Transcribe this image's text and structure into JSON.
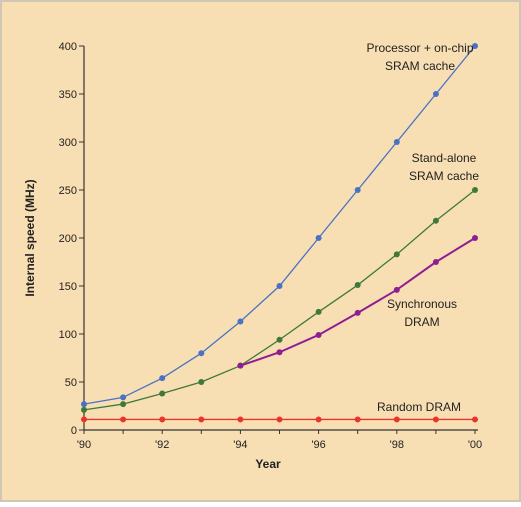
{
  "colors": {
    "background": "#f8dfb3",
    "border": "#cfc6b6",
    "axis": "#333333",
    "text": "#222222"
  },
  "chart_data": {
    "type": "line",
    "xlabel": "Year",
    "ylabel": "Internal speed (MHz)",
    "x": [
      1990,
      1991,
      1992,
      1993,
      1994,
      1995,
      1996,
      1997,
      1998,
      1999,
      2000
    ],
    "xlim": [
      1990,
      2000
    ],
    "ylim": [
      0,
      400
    ],
    "x_ticks": [
      {
        "value": 1990,
        "label": "'90"
      },
      {
        "value": 1992,
        "label": "'92"
      },
      {
        "value": 1994,
        "label": "'94"
      },
      {
        "value": 1996,
        "label": "'96"
      },
      {
        "value": 1998,
        "label": "'98"
      },
      {
        "value": 2000,
        "label": "'00"
      }
    ],
    "y_ticks": [
      {
        "value": 0,
        "label": "0"
      },
      {
        "value": 50,
        "label": "50"
      },
      {
        "value": 100,
        "label": "100"
      },
      {
        "value": 150,
        "label": "150"
      },
      {
        "value": 200,
        "label": "200"
      },
      {
        "value": 250,
        "label": "250"
      },
      {
        "value": 300,
        "label": "300"
      },
      {
        "value": 350,
        "label": "350"
      },
      {
        "value": 400,
        "label": "400"
      }
    ],
    "grid": false,
    "series": [
      {
        "key": "processor",
        "label_lines": [
          "Processor + on-chip",
          "SRAM cache"
        ],
        "color": "#4a72c4",
        "x": [
          1990,
          1991,
          1992,
          1993,
          1994,
          1995,
          1996,
          1997,
          1998,
          1999,
          2000
        ],
        "values": [
          27,
          34,
          54,
          80,
          113,
          150,
          200,
          250,
          300,
          350,
          400
        ]
      },
      {
        "key": "standalone_sram",
        "label_lines": [
          "Stand-alone",
          "SRAM cache"
        ],
        "color": "#3d7a3a",
        "x": [
          1990,
          1991,
          1992,
          1993,
          1994,
          1995,
          1996,
          1997,
          1998,
          1999,
          2000
        ],
        "values": [
          21,
          27,
          38,
          50,
          67,
          94,
          123,
          151,
          183,
          218,
          250
        ]
      },
      {
        "key": "sync_dram",
        "label_lines": [
          "Synchronous",
          "DRAM"
        ],
        "color": "#8e1f93",
        "x": [
          1994,
          1995,
          1996,
          1997,
          1998,
          1999,
          2000
        ],
        "values": [
          67,
          81,
          99,
          122,
          146,
          175,
          200
        ]
      },
      {
        "key": "random_dram",
        "label_lines": [
          "Random DRAM"
        ],
        "color": "#e8352c",
        "x": [
          1990,
          1991,
          1992,
          1993,
          1994,
          1995,
          1996,
          1997,
          1998,
          1999,
          2000
        ],
        "values": [
          11,
          11,
          11,
          11,
          11,
          11,
          11,
          11,
          11,
          11,
          11
        ]
      }
    ]
  }
}
